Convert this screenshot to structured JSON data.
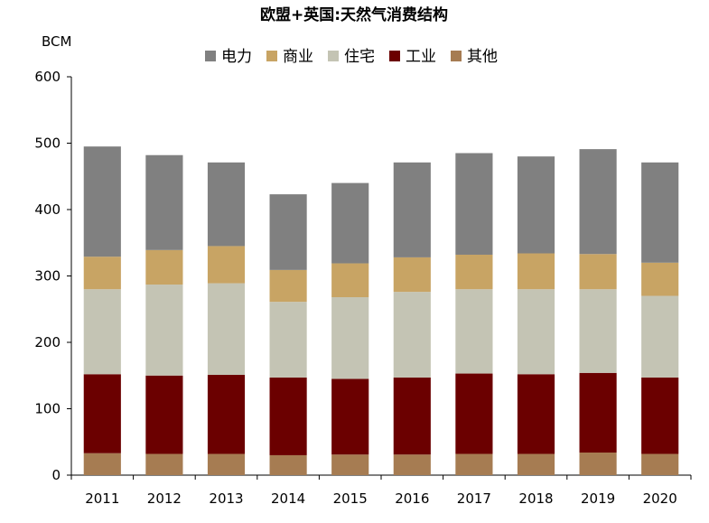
{
  "chart_data": {
    "type": "bar",
    "stacked": true,
    "title": "欧盟+英国:天然气消费结构",
    "unit_label": "BCM",
    "ylim": [
      0,
      600
    ],
    "yticks": [
      0,
      100,
      200,
      300,
      400,
      500,
      600
    ],
    "grid": false,
    "legend_position": "top",
    "categories": [
      "2011",
      "2012",
      "2013",
      "2014",
      "2015",
      "2016",
      "2017",
      "2018",
      "2019",
      "2020"
    ],
    "series": [
      {
        "name": "其他",
        "color": "#A67C52",
        "values": [
          33,
          32,
          32,
          30,
          31,
          31,
          32,
          32,
          34,
          32
        ]
      },
      {
        "name": "工业",
        "color": "#6B0000",
        "values": [
          119,
          118,
          119,
          117,
          114,
          116,
          121,
          120,
          120,
          115
        ]
      },
      {
        "name": "住宅",
        "color": "#C4C4B4",
        "values": [
          128,
          137,
          138,
          114,
          123,
          129,
          127,
          128,
          126,
          123
        ]
      },
      {
        "name": "商业",
        "color": "#C8A464",
        "values": [
          49,
          52,
          56,
          48,
          51,
          52,
          52,
          54,
          53,
          50
        ]
      },
      {
        "name": "电力",
        "color": "#808080",
        "values": [
          166,
          143,
          126,
          114,
          121,
          143,
          153,
          146,
          158,
          151
        ]
      }
    ],
    "legend_order": [
      "电力",
      "商业",
      "住宅",
      "工业",
      "其他"
    ]
  }
}
